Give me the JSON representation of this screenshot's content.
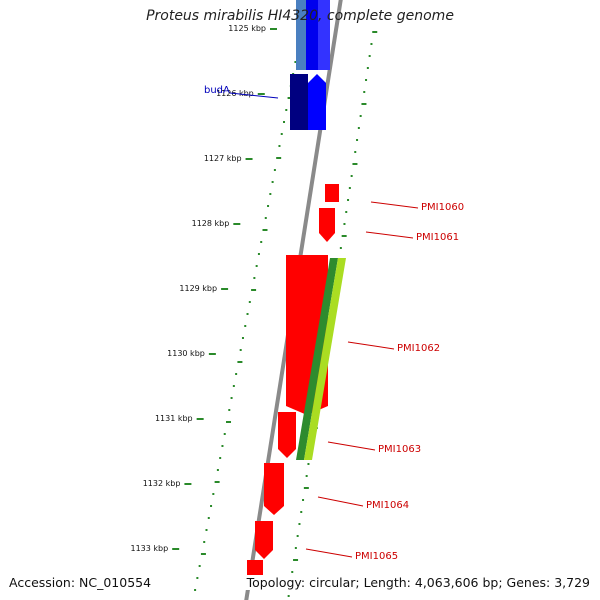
{
  "title": "Proteus mirabilis HI4320, complete genome",
  "footer": {
    "accession": "Accession: NC_010554",
    "topology": "Topology: circular; Length: 4,063,606 bp; Genes: 3,729"
  },
  "colors": {
    "backbone": "#8a8a8a",
    "tick": "#2a8a2a",
    "forward_cds": "#0000ff",
    "reverse_cds": "#ff0000",
    "gene_label_blue": "#0000bb",
    "gene_label_red": "#cc0000"
  },
  "kbp_labels": [
    "1125 kbp",
    "1126 kbp",
    "1127 kbp",
    "1128 kbp",
    "1129 kbp",
    "1130 kbp",
    "1131 kbp",
    "1132 kbp",
    "1133 kbp"
  ],
  "genes": [
    {
      "name": "budA",
      "strand": "+",
      "color": "#0000bb"
    },
    {
      "name": "PMI1060",
      "strand": "-",
      "color": "#cc0000"
    },
    {
      "name": "PMI1061",
      "strand": "-",
      "color": "#cc0000"
    },
    {
      "name": "PMI1062",
      "strand": "-",
      "color": "#cc0000"
    },
    {
      "name": "PMI1063",
      "strand": "-",
      "color": "#cc0000"
    },
    {
      "name": "PMI1064",
      "strand": "-",
      "color": "#cc0000"
    },
    {
      "name": "PMI1065",
      "strand": "-",
      "color": "#cc0000"
    }
  ]
}
